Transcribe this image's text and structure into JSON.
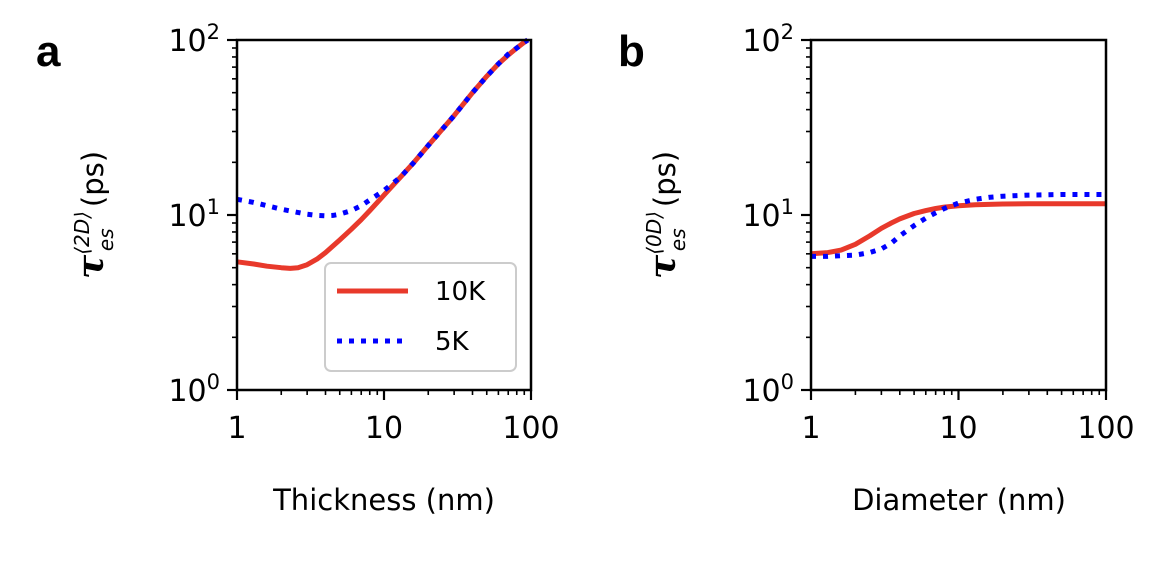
{
  "chart_data": [
    {
      "panel": "a",
      "type": "line",
      "xscale": "log",
      "yscale": "log",
      "xlim": [
        1,
        100
      ],
      "ylim": [
        1,
        100
      ],
      "xticks": [
        1,
        10,
        100
      ],
      "xtick_labels": [
        "1",
        "10",
        "100"
      ],
      "ytick_labels": [
        {
          "base": "10",
          "exp": "0"
        },
        {
          "base": "10",
          "exp": "1"
        },
        {
          "base": "10",
          "exp": "2"
        }
      ],
      "xlabel": "Thickness (nm)",
      "ylabel": {
        "symbol": "τ",
        "sup": "⟨2D⟩",
        "sub": "es",
        "unit": " (ps)"
      },
      "legend": "lower-right",
      "series": [
        {
          "name": "10K",
          "color": "#e8392b",
          "style": "solid",
          "x": [
            1,
            1.3,
            1.6,
            2,
            2.3,
            2.6,
            3,
            3.5,
            4,
            5,
            6,
            7,
            8,
            10,
            13,
            16,
            20,
            25,
            30,
            40,
            50,
            60,
            70,
            80,
            90,
            95
          ],
          "y": [
            5.4,
            5.25,
            5.1,
            5.0,
            4.95,
            5.0,
            5.2,
            5.6,
            6.1,
            7.2,
            8.3,
            9.4,
            10.6,
            13,
            16.5,
            20,
            25,
            31,
            37,
            50,
            62,
            73,
            82,
            90,
            97,
            100
          ]
        },
        {
          "name": "5K",
          "color": "#0000ff",
          "style": "dotted",
          "x": [
            1,
            1.3,
            1.6,
            2,
            2.5,
            3,
            3.5,
            4,
            4.5,
            5,
            6,
            7,
            8,
            10,
            13,
            16,
            20,
            25,
            30,
            40,
            50,
            60,
            70,
            80,
            90,
            95
          ],
          "y": [
            12.3,
            11.8,
            11.3,
            10.8,
            10.4,
            10.1,
            9.95,
            9.9,
            9.95,
            10.1,
            10.6,
            11.3,
            12.2,
            13.8,
            16.5,
            20,
            25,
            31,
            37,
            50,
            62,
            73,
            83,
            90,
            97,
            100
          ]
        }
      ]
    },
    {
      "panel": "b",
      "type": "line",
      "xscale": "log",
      "yscale": "log",
      "xlim": [
        1,
        100
      ],
      "ylim": [
        1,
        100
      ],
      "xticks": [
        1,
        10,
        100
      ],
      "xtick_labels": [
        "1",
        "10",
        "100"
      ],
      "ytick_labels": [
        {
          "base": "10",
          "exp": "0"
        },
        {
          "base": "10",
          "exp": "1"
        },
        {
          "base": "10",
          "exp": "2"
        }
      ],
      "xlabel": "Diameter (nm)",
      "ylabel": {
        "symbol": "τ",
        "sup": "⟨0D⟩",
        "sub": "es",
        "unit": " (ps)"
      },
      "series": [
        {
          "name": "10K",
          "color": "#e8392b",
          "style": "solid",
          "x": [
            1,
            1.3,
            1.6,
            2,
            2.5,
            3,
            3.5,
            4,
            5,
            6,
            7,
            8,
            10,
            13,
            16,
            20,
            30,
            50,
            70,
            100
          ],
          "y": [
            6.0,
            6.1,
            6.3,
            6.8,
            7.6,
            8.4,
            9.0,
            9.5,
            10.2,
            10.6,
            10.9,
            11.1,
            11.3,
            11.45,
            11.5,
            11.55,
            11.6,
            11.6,
            11.6,
            11.6
          ]
        },
        {
          "name": "5K",
          "color": "#0000ff",
          "style": "dotted",
          "x": [
            1,
            1.3,
            1.6,
            2,
            2.5,
            3,
            3.5,
            4,
            5,
            6,
            7,
            8,
            10,
            13,
            16,
            20,
            30,
            50,
            70,
            100
          ],
          "y": [
            5.8,
            5.8,
            5.85,
            5.9,
            6.1,
            6.4,
            6.9,
            7.6,
            8.7,
            9.6,
            10.3,
            10.9,
            11.7,
            12.3,
            12.6,
            12.8,
            13.0,
            13.1,
            13.1,
            13.1
          ]
        }
      ]
    }
  ]
}
